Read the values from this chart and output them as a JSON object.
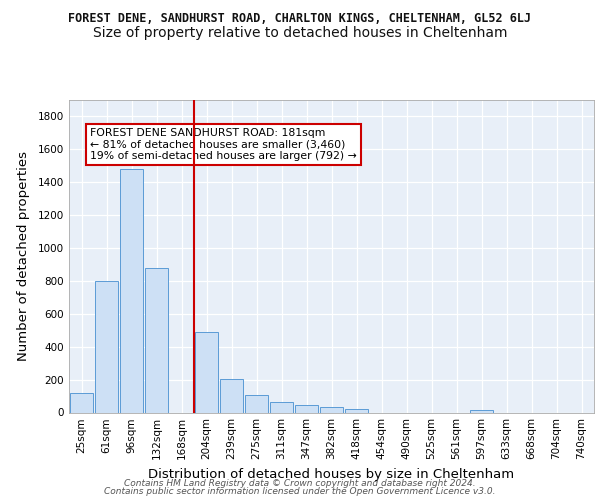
{
  "title_main": "FOREST DENE, SANDHURST ROAD, CHARLTON KINGS, CHELTENHAM, GL52 6LJ",
  "title_sub": "Size of property relative to detached houses in Cheltenham",
  "xlabel": "Distribution of detached houses by size in Cheltenham",
  "ylabel": "Number of detached properties",
  "categories": [
    "25sqm",
    "61sqm",
    "96sqm",
    "132sqm",
    "168sqm",
    "204sqm",
    "239sqm",
    "275sqm",
    "311sqm",
    "347sqm",
    "382sqm",
    "418sqm",
    "454sqm",
    "490sqm",
    "525sqm",
    "561sqm",
    "597sqm",
    "633sqm",
    "668sqm",
    "704sqm",
    "740sqm"
  ],
  "values": [
    120,
    800,
    1480,
    880,
    0,
    490,
    205,
    105,
    65,
    45,
    32,
    22,
    0,
    0,
    0,
    0,
    13,
    0,
    0,
    0,
    0
  ],
  "bar_color": "#cde0f5",
  "bar_edge_color": "#5b9bd5",
  "background_color": "#e8eff8",
  "grid_color": "#ffffff",
  "vline_x": 4.5,
  "vline_color": "#cc0000",
  "annotation_text": "FOREST DENE SANDHURST ROAD: 181sqm\n← 81% of detached houses are smaller (3,460)\n19% of semi-detached houses are larger (792) →",
  "annotation_box_edge": "#cc0000",
  "ylim": [
    0,
    1900
  ],
  "yticks": [
    0,
    200,
    400,
    600,
    800,
    1000,
    1200,
    1400,
    1600,
    1800
  ],
  "footer_line1": "Contains HM Land Registry data © Crown copyright and database right 2024.",
  "footer_line2": "Contains public sector information licensed under the Open Government Licence v3.0.",
  "title_fontsize": 8.5,
  "subtitle_fontsize": 10,
  "axis_label_fontsize": 9.5,
  "tick_fontsize": 7.5,
  "annotation_fontsize": 7.8,
  "footer_fontsize": 6.5
}
